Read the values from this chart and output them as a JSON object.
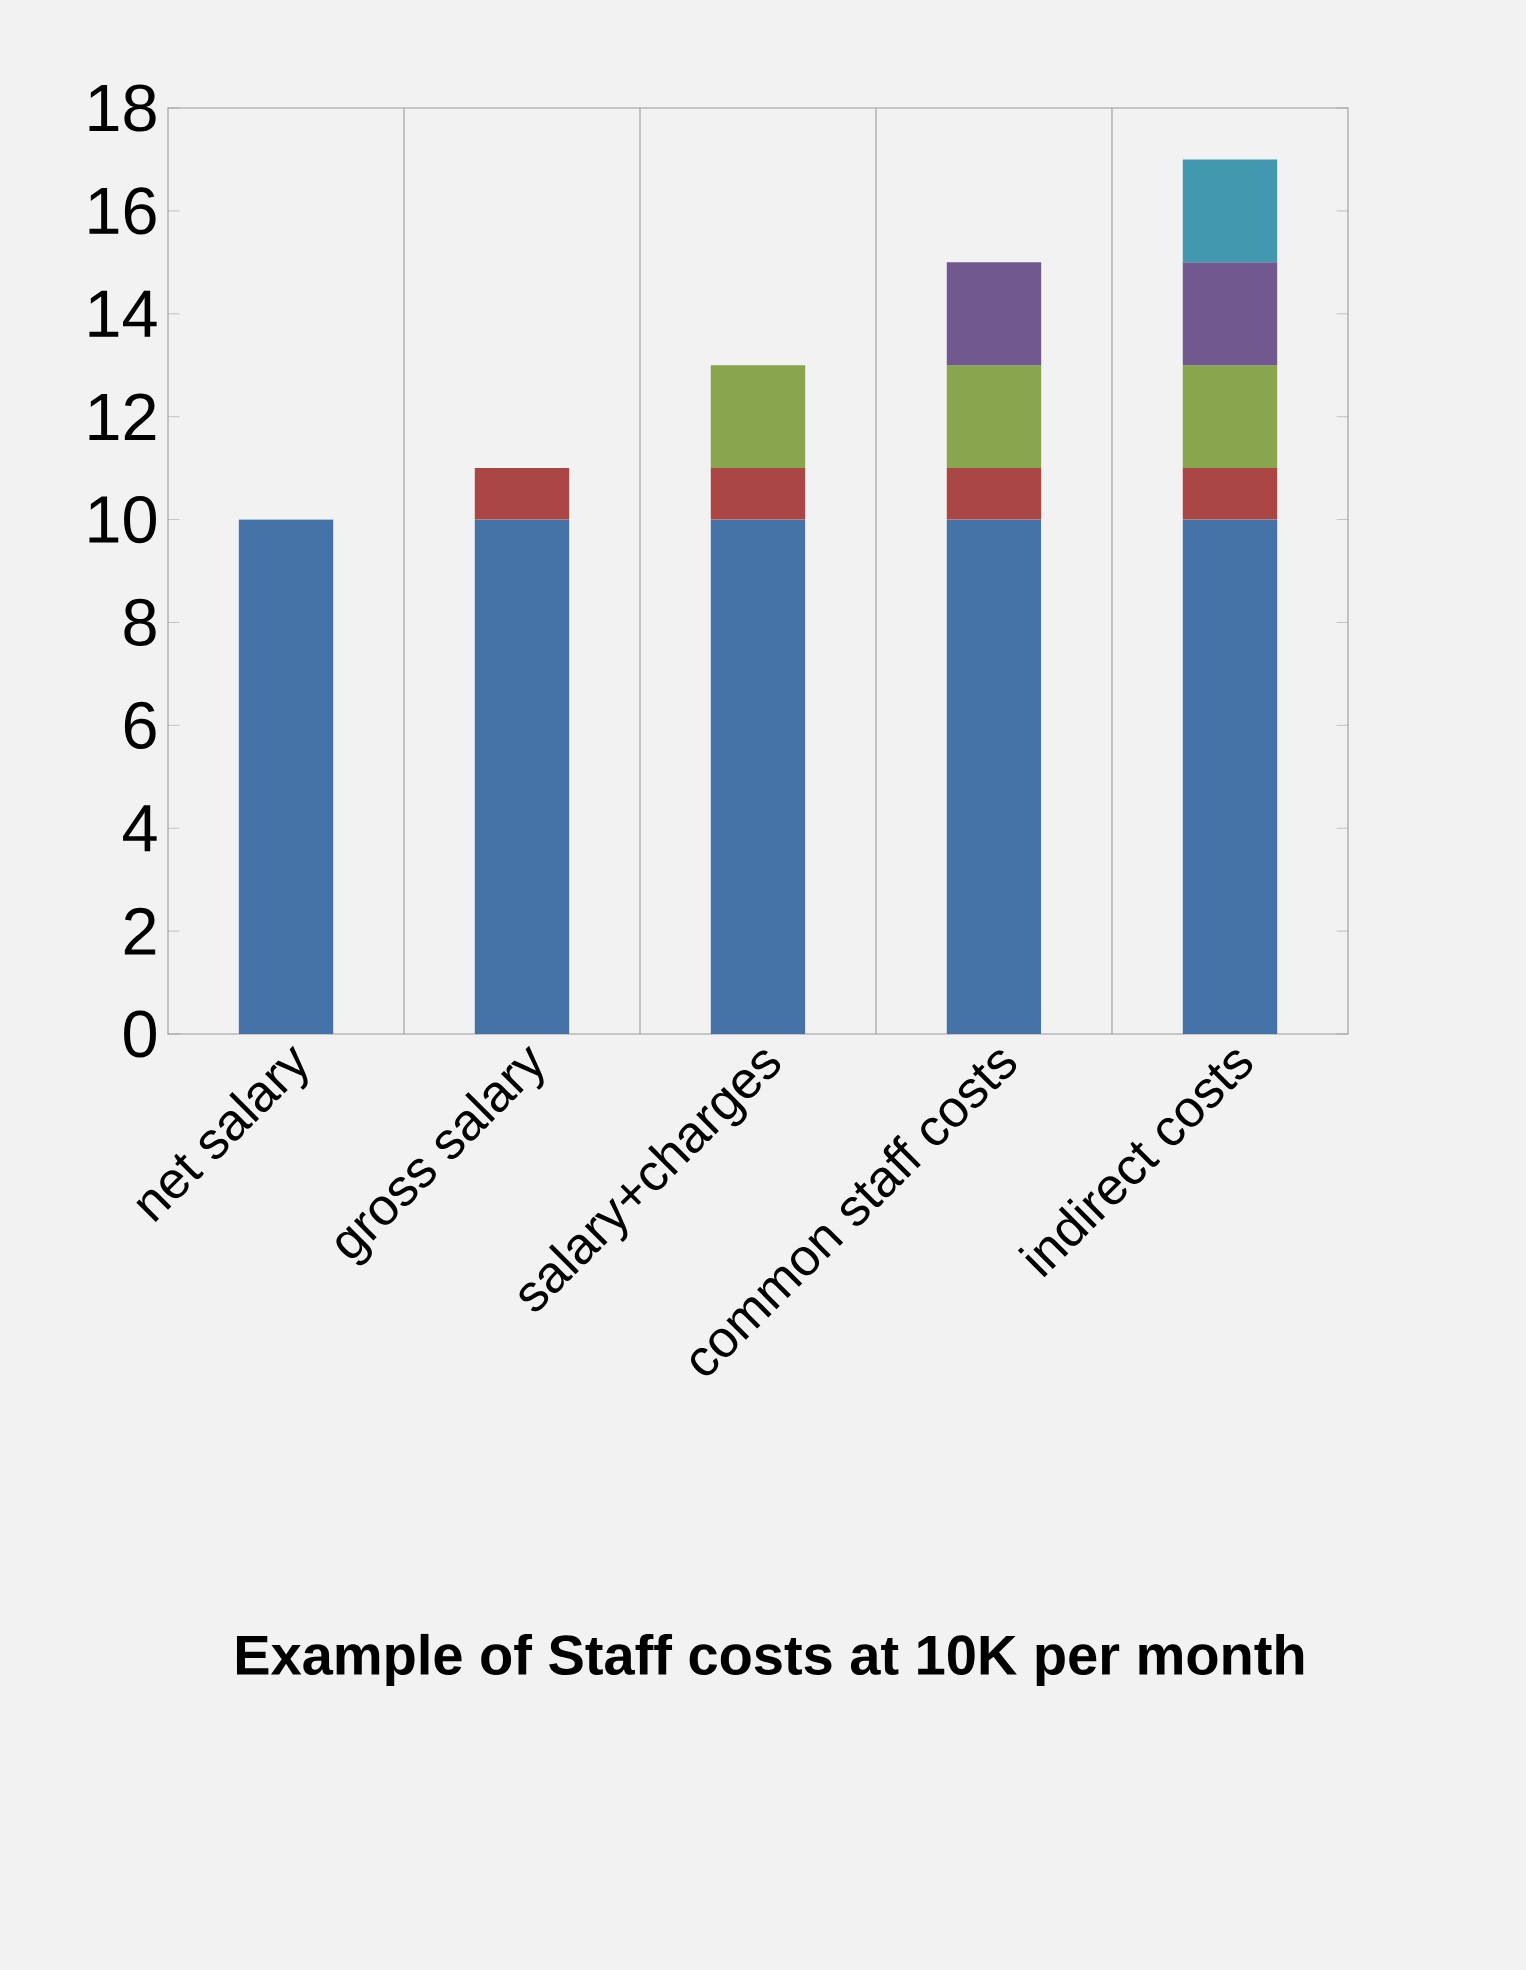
{
  "chart_data": {
    "type": "bar",
    "stacked": true,
    "title": "Example of Staff costs at 10K per month",
    "categories": [
      "net salary",
      "gross salary",
      "salary+charges",
      "common staff costs",
      "indirect costs"
    ],
    "series": [
      {
        "color": "#4572a7",
        "values": [
          10,
          10,
          10,
          10,
          10
        ]
      },
      {
        "color": "#aa4643",
        "values": [
          null,
          1,
          1,
          1,
          1
        ]
      },
      {
        "color": "#89a54e",
        "values": [
          null,
          null,
          2,
          2,
          2
        ]
      },
      {
        "color": "#71588f",
        "values": [
          null,
          null,
          null,
          2,
          2
        ]
      },
      {
        "color": "#4198af",
        "values": [
          null,
          null,
          null,
          null,
          2
        ]
      }
    ],
    "ylim": [
      0,
      18
    ],
    "yticks": [
      0,
      2,
      4,
      6,
      8,
      10,
      12,
      14,
      16,
      18
    ],
    "grid": "x"
  }
}
